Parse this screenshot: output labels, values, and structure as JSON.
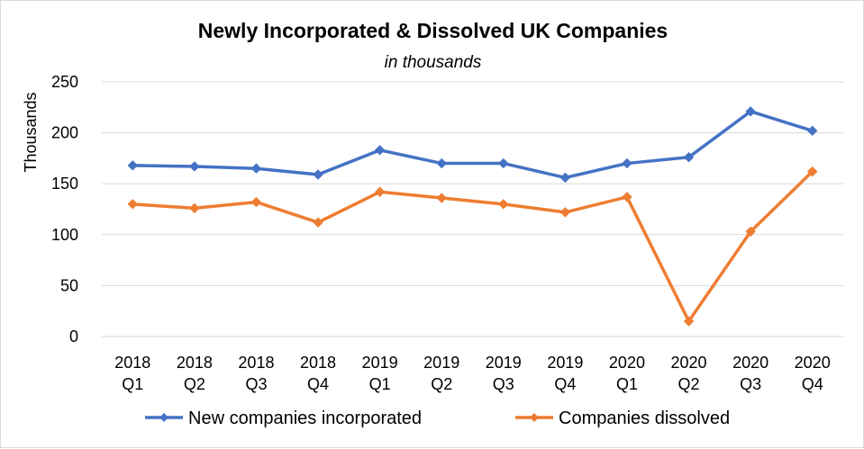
{
  "chart_data": {
    "type": "line",
    "title": "Newly Incorporated & Dissolved UK Companies",
    "subtitle": "in thousands",
    "ylabel": "Thousands",
    "xlabel": "",
    "ylim": [
      0,
      250
    ],
    "yticks": [
      "0",
      "50",
      "100",
      "150",
      "200",
      "250"
    ],
    "categories": [
      [
        "2018",
        "Q1"
      ],
      [
        "2018",
        "Q2"
      ],
      [
        "2018",
        "Q3"
      ],
      [
        "2018",
        "Q4"
      ],
      [
        "2019",
        "Q1"
      ],
      [
        "2019",
        "Q2"
      ],
      [
        "2019",
        "Q3"
      ],
      [
        "2019",
        "Q4"
      ],
      [
        "2020",
        "Q1"
      ],
      [
        "2020",
        "Q2"
      ],
      [
        "2020",
        "Q3"
      ],
      [
        "2020",
        "Q4"
      ]
    ],
    "grid": true,
    "legend_position": "bottom",
    "series": [
      {
        "name": "New companies incorporated",
        "color": "#4472c4",
        "values": [
          168,
          167,
          165,
          159,
          183,
          170,
          170,
          156,
          170,
          176,
          221,
          202
        ]
      },
      {
        "name": "Companies dissolved",
        "color": "#ed7d31",
        "values": [
          130,
          126,
          132,
          112,
          142,
          136,
          130,
          122,
          137,
          15,
          103,
          162
        ]
      }
    ]
  }
}
